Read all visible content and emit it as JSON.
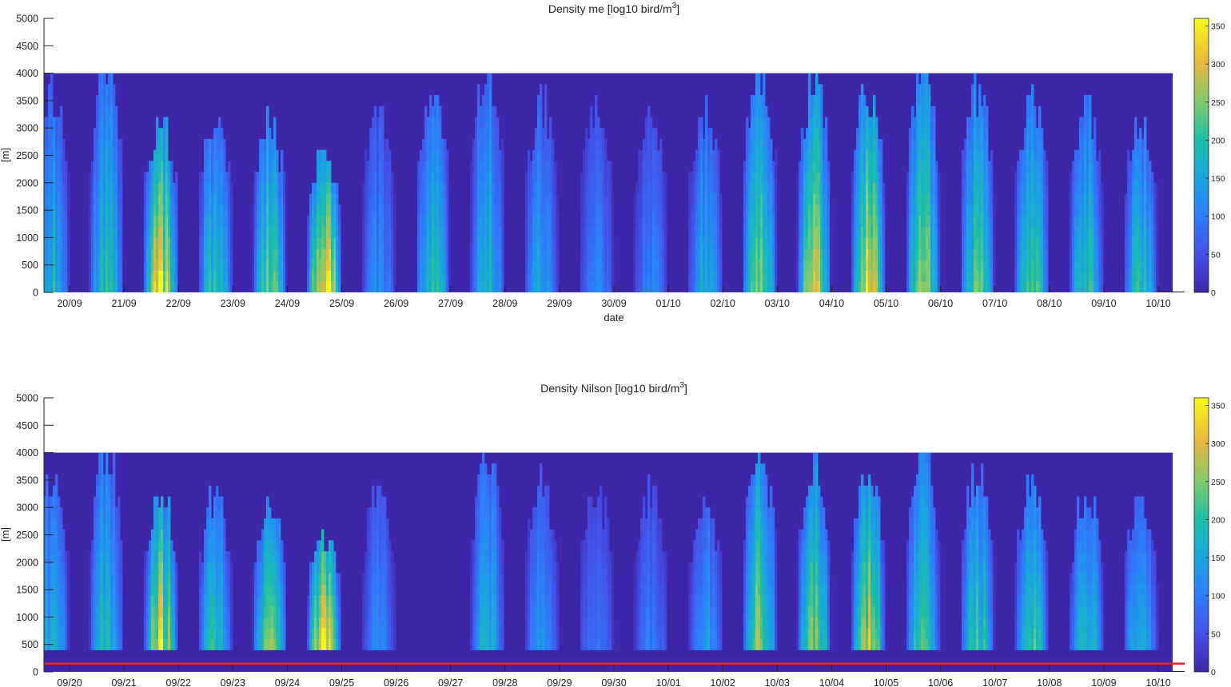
{
  "colors": {
    "low": "#3e26a8",
    "high": "#f9fb15",
    "axis": "#222222",
    "threshold_line": "#e8202a"
  },
  "chart_data": [
    {
      "type": "heatmap",
      "title_main": "Density me [log10 bird/m",
      "title_sup": "3",
      "title_end": "]",
      "xlabel": "date",
      "ylabel": "[m]",
      "ylim": [
        0,
        5000
      ],
      "yticks": [
        "0",
        "500",
        "1000",
        "1500",
        "2000",
        "2500",
        "3000",
        "3500",
        "4000",
        "4500",
        "5000"
      ],
      "xticks": [
        "20/09",
        "21/09",
        "22/09",
        "23/09",
        "24/09",
        "25/09",
        "26/09",
        "27/09",
        "28/09",
        "29/09",
        "30/09",
        "01/10",
        "02/10",
        "03/10",
        "04/10",
        "05/10",
        "06/10",
        "07/10",
        "08/10",
        "09/10",
        "10/10"
      ],
      "colorbar": {
        "range": [
          0,
          360
        ],
        "ticks": [
          "0",
          "50",
          "100",
          "150",
          "200",
          "250",
          "300",
          "350"
        ],
        "colormap": "parula"
      },
      "data_top_altitude_m": 4000,
      "nightly_peak_level": [
        185,
        205,
        325,
        215,
        260,
        350,
        120,
        200,
        180,
        150,
        115,
        110,
        160,
        280,
        285,
        300,
        260,
        240,
        235,
        210,
        195
      ],
      "nightly_peak_height_m": [
        3600,
        4000,
        3200,
        3200,
        3100,
        2500,
        3300,
        3600,
        4000,
        3400,
        3300,
        3200,
        3200,
        4000,
        3700,
        3700,
        4000,
        3600,
        3400,
        3300,
        3100
      ]
    },
    {
      "type": "heatmap",
      "title_main": "Density Nilson [log10 bird/m",
      "title_sup": "3",
      "title_end": "]",
      "xlabel": "",
      "ylabel": "[m]",
      "ylim": [
        0,
        5000
      ],
      "yticks": [
        "0",
        "500",
        "1000",
        "1500",
        "2000",
        "2500",
        "3000",
        "3500",
        "4000",
        "4500",
        "5000"
      ],
      "xticks": [
        "09/20",
        "09/21",
        "09/22",
        "09/23",
        "09/24",
        "09/25",
        "09/26",
        "09/27",
        "09/28",
        "09/29",
        "09/30",
        "10/01",
        "10/02",
        "10/03",
        "10/04",
        "10/05",
        "10/06",
        "10/07",
        "10/08",
        "10/09",
        "10/10"
      ],
      "colorbar": {
        "range": [
          0,
          360
        ],
        "ticks": [
          "0",
          "50",
          "100",
          "150",
          "200",
          "250",
          "300",
          "350"
        ],
        "colormap": "parula"
      },
      "data_top_altitude_m": 4000,
      "masked_below_altitude_m": 400,
      "masked_gap_dates": [
        "09/27"
      ],
      "threshold_line_altitude_m": 150,
      "nightly_peak_level": [
        185,
        205,
        325,
        215,
        260,
        350,
        120,
        0,
        180,
        150,
        115,
        110,
        160,
        280,
        285,
        300,
        260,
        240,
        235,
        210,
        195
      ],
      "nightly_peak_height_m": [
        3600,
        4000,
        3200,
        3200,
        3100,
        2500,
        3300,
        0,
        4000,
        3400,
        3300,
        3200,
        3200,
        4000,
        3700,
        3700,
        4000,
        3600,
        3400,
        3300,
        3100
      ]
    }
  ]
}
